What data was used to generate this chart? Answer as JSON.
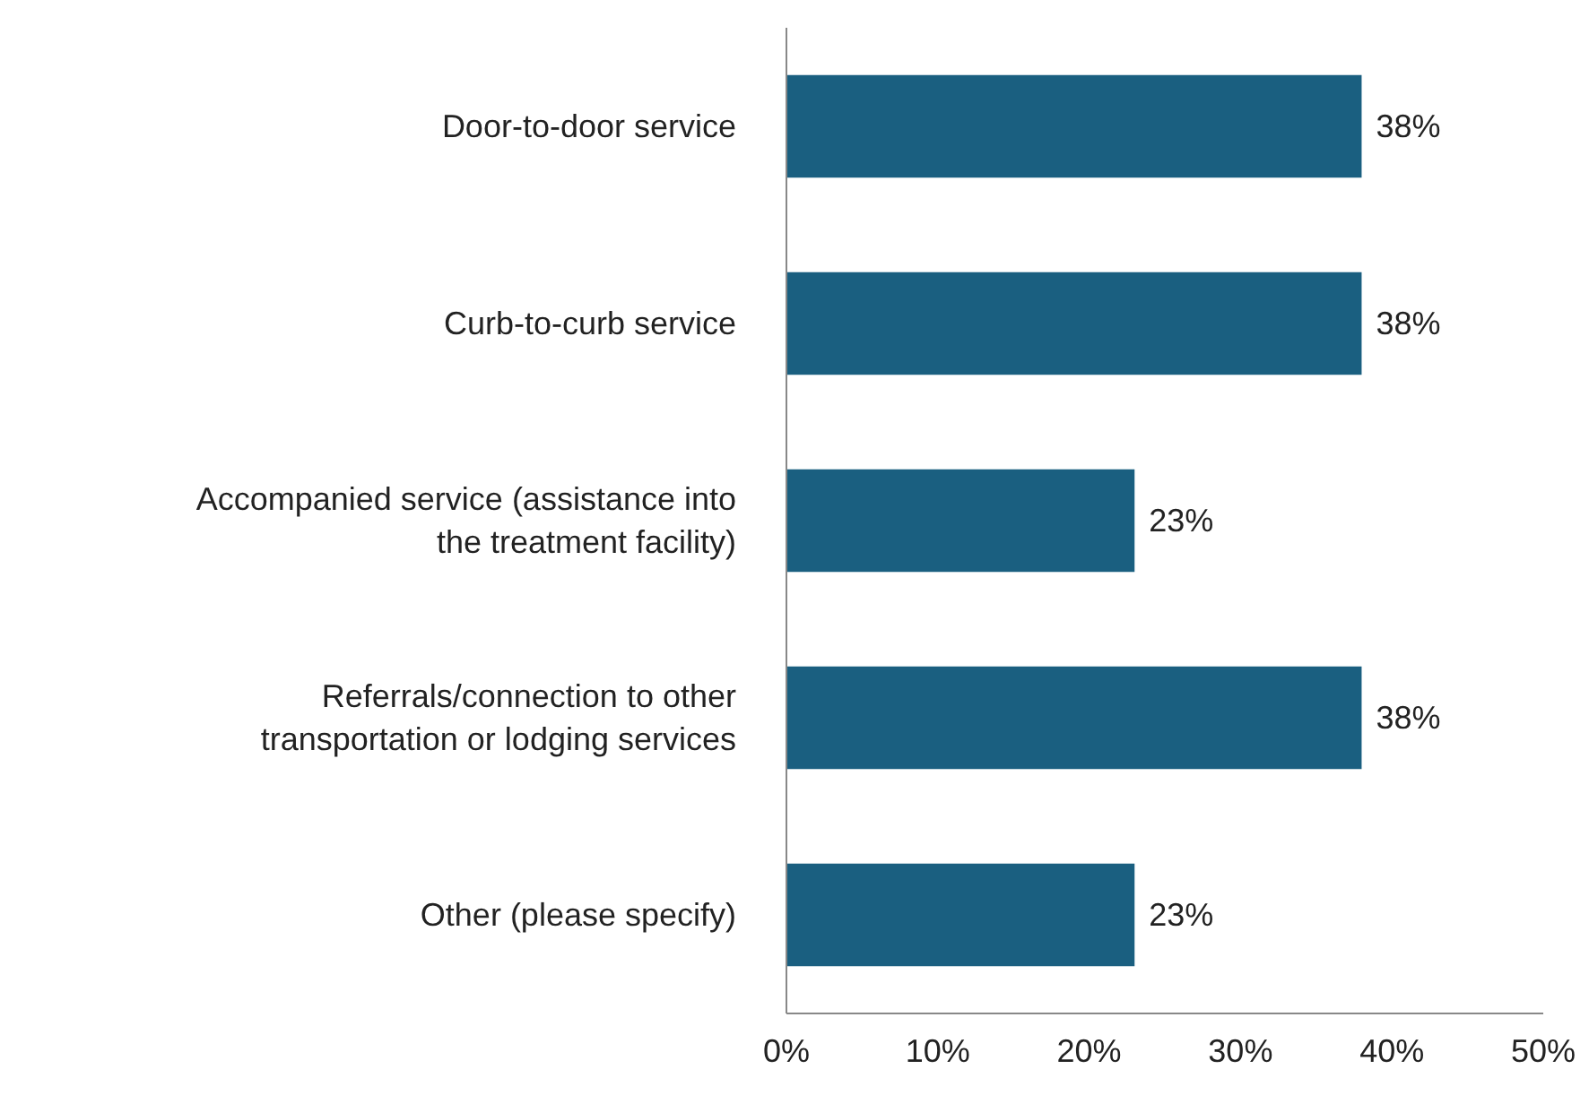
{
  "chart_data": {
    "type": "bar",
    "orientation": "horizontal",
    "categories": [
      "Door-to-door service",
      "Curb-to-curb service",
      "Accompanied service (assistance into the treatment facility)",
      "Referrals/connection to other transportation or lodging services",
      "Other (please specify)"
    ],
    "values": [
      38,
      38,
      23,
      38,
      23
    ],
    "value_labels": [
      "38%",
      "38%",
      "23%",
      "38%",
      "23%"
    ],
    "color": "#1a5f80",
    "xlim": [
      0,
      50
    ],
    "xticks": [
      {
        "value": 0,
        "label": "0%"
      },
      {
        "value": 10,
        "label": "10%"
      },
      {
        "value": 20,
        "label": "20%"
      },
      {
        "value": 30,
        "label": "30%"
      },
      {
        "value": 40,
        "label": "40%"
      },
      {
        "value": 50,
        "label": "50%"
      }
    ],
    "grid": false
  }
}
